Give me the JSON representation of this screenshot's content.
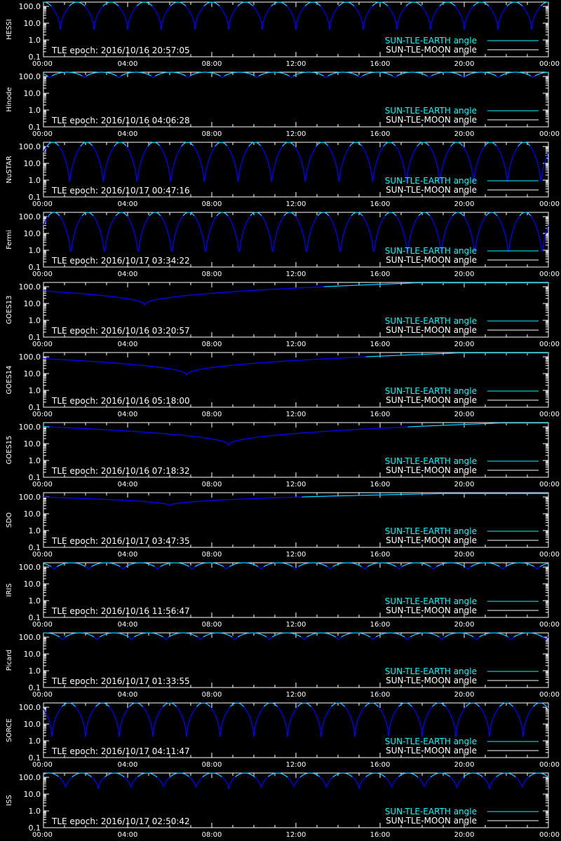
{
  "legend": {
    "earth_label": "SUN-TLE-EARTH angle",
    "moon_label": "SUN-TLE-MOON angle"
  },
  "colors": {
    "background": "#000000",
    "axes": "#ffffff",
    "earth": "#00ffff",
    "moon": "#ffffff",
    "curve": "#0000ff"
  },
  "chart_data": [
    {
      "type": "line",
      "ylabel": "HESSI",
      "epoch_text": "TLE epoch: 2016/10/16 20:57:05",
      "curve": "periodic",
      "period_h": 1.6,
      "min": 4,
      "phase": 0.8,
      "x_ticks": [
        "00:00",
        "04:00",
        "08:00",
        "12:00",
        "16:00",
        "20:00",
        "00:00"
      ],
      "xlim": [
        0,
        24
      ],
      "y_ticks": [
        "100.0",
        "10.0",
        "1.0",
        "0.1"
      ],
      "ylim": [
        0.1,
        180
      ],
      "y_scale": "log"
    },
    {
      "type": "line",
      "ylabel": "Hinode",
      "epoch_text": "TLE epoch: 2016/10/16 04:06:28",
      "curve": "periodic",
      "period_h": 1.64,
      "min": 75,
      "phase": 0.3,
      "x_ticks": [
        "00:00",
        "04:00",
        "08:00",
        "12:00",
        "16:00",
        "20:00",
        "00:00"
      ],
      "xlim": [
        0,
        24
      ],
      "y_ticks": [
        "100.0",
        "10.0",
        "1.0",
        "0.1"
      ],
      "ylim": [
        0.1,
        180
      ],
      "y_scale": "log"
    },
    {
      "type": "line",
      "ylabel": "NuSTAR",
      "epoch_text": "TLE epoch: 2016/10/17 00:47:16",
      "curve": "periodic",
      "period_h": 1.6,
      "min": 0.4,
      "phase": 1.25,
      "x_ticks": [
        "00:00",
        "04:00",
        "08:00",
        "12:00",
        "16:00",
        "20:00",
        "00:00"
      ],
      "xlim": [
        0,
        24
      ],
      "y_ticks": [
        "100.0",
        "10.0",
        "1.0",
        "0.1"
      ],
      "ylim": [
        0.1,
        180
      ],
      "y_scale": "log"
    },
    {
      "type": "line",
      "ylabel": "Fermi",
      "epoch_text": "TLE epoch: 2016/10/17 03:34:22",
      "curve": "periodic",
      "period_h": 1.6,
      "min": 0.3,
      "phase": 1.3,
      "x_ticks": [
        "00:00",
        "04:00",
        "08:00",
        "12:00",
        "16:00",
        "20:00",
        "00:00"
      ],
      "xlim": [
        0,
        24
      ],
      "y_ticks": [
        "100.0",
        "10.0",
        "1.0",
        "0.1"
      ],
      "ylim": [
        0.1,
        180
      ],
      "y_scale": "log"
    },
    {
      "type": "line",
      "ylabel": "GOES13",
      "epoch_text": "TLE epoch: 2016/10/16 03:20:57",
      "curve": "geo",
      "min_t": 4.8,
      "min": 8,
      "max": 170,
      "x_ticks": [
        "00:00",
        "04:00",
        "08:00",
        "12:00",
        "16:00",
        "20:00",
        "00:00"
      ],
      "xlim": [
        0,
        24
      ],
      "y_ticks": [
        "100.0",
        "10.0",
        "1.0",
        "0.1"
      ],
      "ylim": [
        0.1,
        180
      ],
      "y_scale": "log"
    },
    {
      "type": "line",
      "ylabel": "GOES14",
      "epoch_text": "TLE epoch: 2016/10/16 05:18:00",
      "curve": "geo",
      "min_t": 6.8,
      "min": 8,
      "max": 170,
      "x_ticks": [
        "00:00",
        "04:00",
        "08:00",
        "12:00",
        "16:00",
        "20:00",
        "00:00"
      ],
      "xlim": [
        0,
        24
      ],
      "y_ticks": [
        "100.0",
        "10.0",
        "1.0",
        "0.1"
      ],
      "ylim": [
        0.1,
        180
      ],
      "y_scale": "log"
    },
    {
      "type": "line",
      "ylabel": "GOES15",
      "epoch_text": "TLE epoch: 2016/10/16 07:18:32",
      "curve": "geo",
      "min_t": 8.8,
      "min": 8,
      "max": 170,
      "x_ticks": [
        "00:00",
        "04:00",
        "08:00",
        "12:00",
        "16:00",
        "20:00",
        "00:00"
      ],
      "xlim": [
        0,
        24
      ],
      "y_ticks": [
        "100.0",
        "10.0",
        "1.0",
        "0.1"
      ],
      "ylim": [
        0.1,
        180
      ],
      "y_scale": "log"
    },
    {
      "type": "line",
      "ylabel": "SDO",
      "epoch_text": "TLE epoch: 2016/10/17 03:47:35",
      "curve": "geo",
      "min_t": 6.0,
      "min": 30,
      "max": 160,
      "x_ticks": [
        "00:00",
        "04:00",
        "08:00",
        "12:00",
        "16:00",
        "20:00",
        "00:00"
      ],
      "xlim": [
        0,
        24
      ],
      "y_ticks": [
        "100.0",
        "10.0",
        "1.0",
        "0.1"
      ],
      "ylim": [
        0.1,
        180
      ],
      "y_scale": "log"
    },
    {
      "type": "line",
      "ylabel": "IRIS",
      "epoch_text": "TLE epoch: 2016/10/16 11:56:47",
      "curve": "periodic",
      "period_h": 1.64,
      "min": 65,
      "phase": 0.5,
      "x_ticks": [
        "00:00",
        "04:00",
        "08:00",
        "12:00",
        "16:00",
        "20:00",
        "00:00"
      ],
      "xlim": [
        0,
        24
      ],
      "y_ticks": [
        "100.0",
        "10.0",
        "1.0",
        "0.1"
      ],
      "ylim": [
        0.1,
        180
      ],
      "y_scale": "log"
    },
    {
      "type": "line",
      "ylabel": "Picard",
      "epoch_text": "TLE epoch: 2016/10/17 01:33:55",
      "curve": "periodic",
      "period_h": 1.64,
      "min": 60,
      "phase": 0.9,
      "x_ticks": [
        "00:00",
        "04:00",
        "08:00",
        "12:00",
        "16:00",
        "20:00",
        "00:00"
      ],
      "xlim": [
        0,
        24
      ],
      "y_ticks": [
        "100.0",
        "10.0",
        "1.0",
        "0.1"
      ],
      "ylim": [
        0.1,
        180
      ],
      "y_scale": "log"
    },
    {
      "type": "line",
      "ylabel": "SORCE",
      "epoch_text": "TLE epoch: 2016/10/17 04:11:47",
      "curve": "periodic",
      "period_h": 1.6,
      "min": 1.7,
      "phase": 0.4,
      "x_ticks": [
        "00:00",
        "04:00",
        "08:00",
        "12:00",
        "16:00",
        "20:00",
        "00:00"
      ],
      "xlim": [
        0,
        24
      ],
      "y_ticks": [
        "100.0",
        "10.0",
        "1.0",
        "0.1"
      ],
      "ylim": [
        0.1,
        180
      ],
      "y_scale": "log"
    },
    {
      "type": "line",
      "ylabel": "ISS",
      "epoch_text": "TLE epoch: 2016/10/17 02:50:42",
      "curve": "periodic",
      "period_h": 1.55,
      "min": 20,
      "phase": 1.05,
      "x_ticks": [
        "00:00",
        "04:00",
        "08:00",
        "12:00",
        "16:00",
        "20:00",
        "00:00"
      ],
      "xlim": [
        0,
        24
      ],
      "y_ticks": [
        "100.0",
        "10.0",
        "1.0",
        "0.1"
      ],
      "ylim": [
        0.1,
        180
      ],
      "y_scale": "log"
    }
  ]
}
